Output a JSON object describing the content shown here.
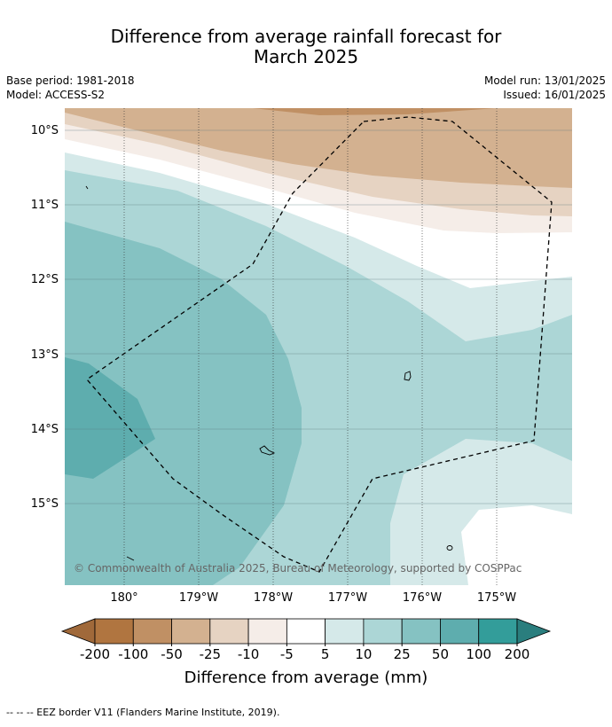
{
  "title_line1": "Difference from average rainfall forecast for",
  "title_line2": "March 2025",
  "meta": {
    "base_period": "Base period: 1981-2018",
    "model": "Model: ACCESS-S2",
    "model_run": "Model run: 13/01/2025",
    "issued": "Issued: 16/01/2025"
  },
  "map": {
    "lat_labels": [
      "10°S",
      "11°S",
      "12°S",
      "13°S",
      "14°S",
      "15°S"
    ],
    "lon_labels": [
      "180°",
      "179°W",
      "178°W",
      "177°W",
      "176°W",
      "175°W"
    ],
    "copyright": "© Commonwealth of Australia 2025, Bureau of Meteorology, supported by COSPPac"
  },
  "colorbar": {
    "ticks": [
      "-200",
      "-100",
      "-50",
      "-25",
      "-10",
      "-5",
      "5",
      "10",
      "25",
      "50",
      "100",
      "200"
    ],
    "colors": [
      "#a0693a",
      "#b07540",
      "#c09064",
      "#d3b190",
      "#e6d3c2",
      "#f5ede8",
      "#ffffff",
      "#d5e9e9",
      "#acd6d6",
      "#85c2c2",
      "#5eadae",
      "#339d9a",
      "#2a7e7e"
    ],
    "label": "Difference from average (mm)"
  },
  "footnote": "--  --  -- EEZ border V11 (Flanders Marine Institute, 2019)."
}
